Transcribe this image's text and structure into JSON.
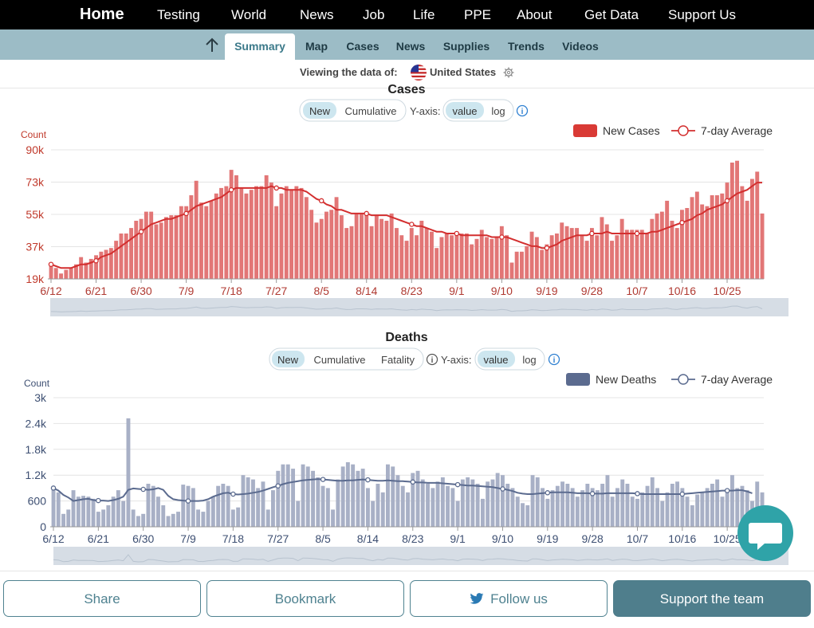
{
  "topnav": {
    "items": [
      "Home",
      "Testing",
      "World",
      "News",
      "Job",
      "Life",
      "PPE",
      "About",
      "Get Data",
      "Support Us"
    ]
  },
  "subnav": {
    "tabs": [
      "Summary",
      "Map",
      "Cases",
      "News",
      "Supplies",
      "Trends",
      "Videos"
    ],
    "active": "Summary"
  },
  "viewing": {
    "prefix": "Viewing the data of:",
    "country": "United States"
  },
  "cases_panel": {
    "title": "Cases",
    "mode_toggle": [
      "New",
      "Cumulative"
    ],
    "yaxis_label": "Y-axis:",
    "yaxis_toggle": [
      "value",
      "log"
    ],
    "legend_bars": "New Cases",
    "legend_line": "7-day Average"
  },
  "deaths_panel": {
    "title": "Deaths",
    "mode_toggle": [
      "New",
      "Cumulative",
      "Fatality"
    ],
    "yaxis_label": "Y-axis:",
    "yaxis_toggle": [
      "value",
      "log"
    ],
    "legend_bars": "New Deaths",
    "legend_line": "7-day Average"
  },
  "actions": {
    "share": "Share",
    "bookmark": "Bookmark",
    "follow": "Follow us",
    "support": "Support the team"
  },
  "colors": {
    "cases": "#e06c6c",
    "cases_line": "#d32f2f",
    "cases_axis": "#c0392b",
    "deaths": "#a8b0c6",
    "deaths_line": "#5b6b8f",
    "deaths_axis": "#3d4f72",
    "teal": "#4f7e8c"
  },
  "chart_data": [
    {
      "type": "bar",
      "title": "Cases",
      "ylabel": "Count",
      "yticks": [
        "19k",
        "37k",
        "55k",
        "73k",
        "90k"
      ],
      "ylim": [
        19000,
        90000
      ],
      "xticks": [
        "6/12",
        "6/21",
        "6/30",
        "7/9",
        "7/18",
        "7/27",
        "8/5",
        "8/14",
        "8/23",
        "9/1",
        "9/10",
        "9/19",
        "9/28",
        "10/7",
        "10/16",
        "10/25"
      ],
      "start_date": "6/12",
      "series": [
        {
          "name": "New Cases",
          "values": [
            26000,
            25000,
            22000,
            24000,
            25000,
            27000,
            31000,
            28000,
            30000,
            32000,
            34000,
            35000,
            36000,
            40000,
            44000,
            44000,
            47000,
            51000,
            52000,
            56000,
            56000,
            49000,
            50000,
            53000,
            54000,
            54000,
            59000,
            59000,
            65000,
            73000,
            61000,
            59000,
            62000,
            66000,
            69000,
            70000,
            79000,
            76000,
            69000,
            66000,
            68000,
            70000,
            70000,
            76000,
            72000,
            59000,
            66000,
            70000,
            68000,
            70000,
            69000,
            64000,
            57000,
            50000,
            52000,
            56000,
            57000,
            64000,
            54000,
            47000,
            48000,
            55000,
            55000,
            54000,
            48000,
            54000,
            52000,
            51000,
            55000,
            47000,
            43000,
            40000,
            47000,
            43000,
            51000,
            47000,
            45000,
            36000,
            42000,
            44000,
            43000,
            45000,
            44000,
            44000,
            38000,
            41000,
            46000,
            42000,
            41000,
            42000,
            48000,
            43000,
            28000,
            34000,
            34000,
            37000,
            45000,
            42000,
            35000,
            38000,
            43000,
            44000,
            50000,
            48000,
            47000,
            47000,
            43000,
            40000,
            47000,
            43000,
            53000,
            49000,
            40000,
            43000,
            52000,
            46000,
            46000,
            46000,
            46000,
            44000,
            52000,
            55000,
            56000,
            62000,
            51000,
            47000,
            57000,
            58000,
            64000,
            67000,
            60000,
            59000,
            65000,
            65000,
            66000,
            72000,
            83000,
            84000,
            70000,
            62000,
            74000,
            78000,
            55000
          ]
        },
        {
          "name": "7-day Average",
          "values": [
            27000,
            26000,
            25000,
            25000,
            25000,
            26000,
            27000,
            27000,
            28000,
            29000,
            31000,
            32000,
            33000,
            35000,
            37000,
            39000,
            41000,
            43000,
            45000,
            47000,
            49000,
            50000,
            51000,
            52000,
            52000,
            53000,
            54000,
            55000,
            57000,
            59000,
            60000,
            61000,
            62000,
            63000,
            64000,
            66000,
            68000,
            69000,
            69000,
            69000,
            69000,
            69000,
            69000,
            69000,
            70000,
            69000,
            69000,
            68000,
            68000,
            68000,
            68000,
            67000,
            65000,
            63000,
            62000,
            60000,
            59000,
            57000,
            57000,
            56000,
            55000,
            55000,
            55000,
            55000,
            54000,
            54000,
            54000,
            54000,
            53000,
            52000,
            51000,
            50000,
            49000,
            48000,
            48000,
            47000,
            46000,
            45000,
            45000,
            44000,
            44000,
            44000,
            43000,
            43000,
            43000,
            43000,
            43000,
            43000,
            42000,
            42000,
            42000,
            42000,
            41000,
            40000,
            39000,
            38000,
            37000,
            37000,
            36000,
            36000,
            37000,
            38000,
            40000,
            41000,
            42000,
            43000,
            43000,
            43000,
            44000,
            44000,
            44000,
            45000,
            44000,
            44000,
            44000,
            44000,
            44000,
            44000,
            44000,
            44000,
            45000,
            45000,
            46000,
            47000,
            48000,
            49000,
            50000,
            51000,
            52000,
            54000,
            55000,
            57000,
            58000,
            59000,
            60000,
            62000,
            64000,
            66000,
            67000,
            68000,
            70000,
            72000,
            72000
          ]
        }
      ]
    },
    {
      "type": "bar",
      "title": "Deaths",
      "ylabel": "Count",
      "yticks": [
        "0",
        "600",
        "1.2k",
        "1.8k",
        "2.4k",
        "3k"
      ],
      "ylim": [
        0,
        3000
      ],
      "xticks": [
        "6/12",
        "6/21",
        "6/30",
        "7/9",
        "7/18",
        "7/27",
        "8/5",
        "8/14",
        "8/23",
        "9/1",
        "9/10",
        "9/19",
        "9/28",
        "10/7",
        "10/16",
        "10/25"
      ],
      "start_date": "6/12",
      "series": [
        {
          "name": "New Deaths",
          "values": [
            900,
            800,
            300,
            400,
            850,
            700,
            720,
            700,
            650,
            350,
            400,
            500,
            700,
            850,
            600,
            2520,
            400,
            250,
            300,
            1000,
            950,
            700,
            500,
            250,
            300,
            350,
            980,
            950,
            900,
            400,
            350,
            600,
            700,
            950,
            1000,
            950,
            400,
            450,
            1200,
            1150,
            1100,
            900,
            1050,
            400,
            850,
            1300,
            1450,
            1450,
            1350,
            600,
            1450,
            1400,
            1300,
            1150,
            950,
            900,
            400,
            1100,
            1400,
            1500,
            1450,
            1300,
            1350,
            900,
            600,
            1000,
            800,
            1450,
            1400,
            1200,
            950,
            800,
            1250,
            1300,
            1100,
            1000,
            900,
            1050,
            1150,
            950,
            900,
            600,
            1100,
            1150,
            1100,
            1000,
            650,
            1050,
            1100,
            1250,
            1200,
            1000,
            900,
            700,
            550,
            500,
            1200,
            1150,
            900,
            650,
            850,
            950,
            1050,
            1000,
            900,
            700,
            850,
            1000,
            900,
            850,
            1000,
            1200,
            700,
            900,
            1100,
            1000,
            700,
            650,
            800,
            950,
            1150,
            900,
            600,
            800,
            1000,
            1050,
            900,
            700,
            500,
            750,
            800,
            900,
            1000,
            1100,
            700,
            850,
            1200,
            900,
            950,
            850,
            600,
            1050,
            800
          ]
        },
        {
          "name": "7-day Average",
          "values": [
            900,
            840,
            740,
            680,
            600,
            620,
            640,
            650,
            620,
            610,
            610,
            600,
            620,
            650,
            700,
            860,
            890,
            880,
            870,
            860,
            870,
            900,
            860,
            720,
            640,
            620,
            610,
            600,
            600,
            600,
            610,
            640,
            700,
            740,
            780,
            790,
            760,
            750,
            760,
            770,
            790,
            810,
            840,
            880,
            920,
            950,
            990,
            1020,
            1040,
            1060,
            1080,
            1090,
            1100,
            1110,
            1100,
            1090,
            1080,
            1070,
            1070,
            1080,
            1080,
            1090,
            1100,
            1090,
            1080,
            1070,
            1070,
            1080,
            1070,
            1060,
            1060,
            1050,
            1040,
            1030,
            1030,
            1020,
            1020,
            1020,
            1010,
            1000,
            990,
            980,
            970,
            960,
            960,
            950,
            940,
            930,
            920,
            900,
            880,
            860,
            830,
            790,
            770,
            760,
            760,
            770,
            780,
            790,
            800,
            800,
            800,
            800,
            790,
            780,
            780,
            780,
            770,
            770,
            770,
            780,
            780,
            780,
            780,
            780,
            780,
            770,
            760,
            760,
            760,
            760,
            760,
            760,
            760,
            760,
            760,
            770,
            780,
            790,
            800,
            810,
            820,
            830,
            840,
            840,
            840,
            850,
            850,
            820,
            780
          ]
        }
      ]
    }
  ]
}
